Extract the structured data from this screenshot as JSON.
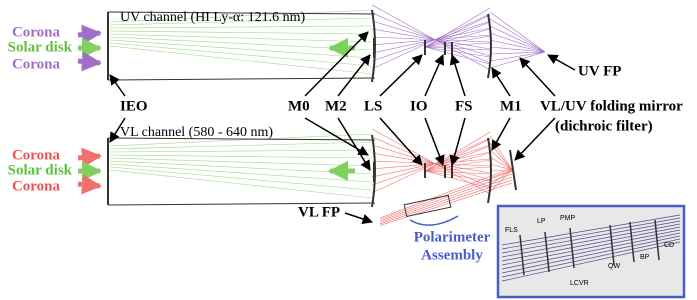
{
  "uv_channel": {
    "title": "UV channel (HI Ly-α: 121.6 nm)",
    "inputs": [
      "Corona",
      "Solar disk",
      "Corona"
    ],
    "focal_plane": "UV FP"
  },
  "vl_channel": {
    "title": "VL channel (580 - 640 nm)",
    "inputs": [
      "Corona",
      "Solar disk",
      "Corona"
    ],
    "focal_plane": "VL FP"
  },
  "components": [
    "IEO",
    "M0",
    "M2",
    "LS",
    "IO",
    "FS",
    "M1"
  ],
  "folding_mirror": {
    "name": "VL/UV folding mirror",
    "note": "(dichroic filter)"
  },
  "polarimeter": {
    "title": [
      "Polarimeter",
      "Assembly"
    ],
    "parts": [
      "FLS",
      "LP",
      "PMP",
      "CD",
      "BP",
      "QW",
      "LCVR"
    ]
  }
}
